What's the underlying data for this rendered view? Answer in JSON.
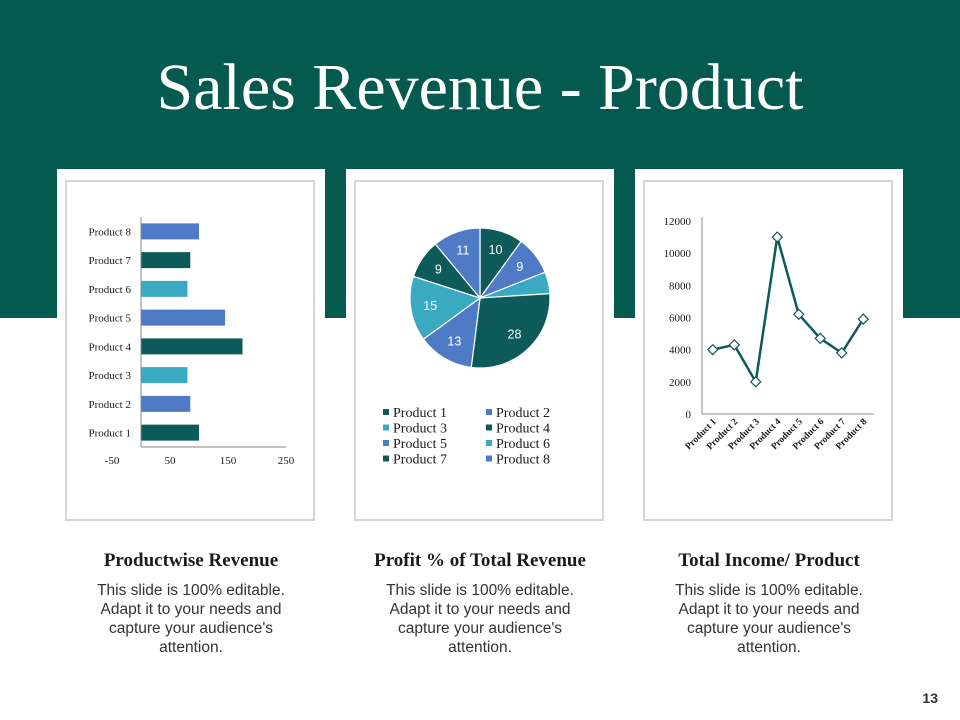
{
  "title": "Sales Revenue - Product",
  "page_number": "13",
  "colors": {
    "teal": "#045a4e",
    "blue": "#4f7bc6",
    "cyan": "#3aaac2",
    "navy": "#0d5a5b"
  },
  "captions": [
    {
      "title": "Productwise Revenue",
      "lines": [
        "This slide is 100% editable.",
        "Adapt it to your needs and",
        "capture your audience's",
        "attention."
      ]
    },
    {
      "title": "Profit % of Total Revenue",
      "lines": [
        "This slide is 100% editable.",
        "Adapt it to your needs and",
        "capture your audience's",
        "attention."
      ]
    },
    {
      "title": "Total Income/ Product",
      "lines": [
        "This slide is 100% editable.",
        "Adapt it to your needs and",
        "capture your audience's",
        "attention."
      ]
    }
  ],
  "chart_data": [
    {
      "type": "bar",
      "orientation": "horizontal",
      "title": "Productwise Revenue",
      "categories": [
        "Product 1",
        "Product 2",
        "Product 3",
        "Product 4",
        "Product 5",
        "Product 6",
        "Product 7",
        "Product 8"
      ],
      "values": [
        100,
        85,
        80,
        175,
        145,
        80,
        85,
        100
      ],
      "bar_colors": [
        "#0d5a5b",
        "#4f7bc6",
        "#3aaac2",
        "#0d5a5b",
        "#4f7bc6",
        "#3aaac2",
        "#0d5a5b",
        "#4f7bc6"
      ],
      "xlim": [
        -50,
        250
      ],
      "xticks": [
        -50,
        50,
        150,
        250
      ],
      "xlabel": "",
      "ylabel": ""
    },
    {
      "type": "pie",
      "title": "Profit % of Total Revenue",
      "slices": [
        {
          "label": "Product 1",
          "value": 10,
          "color": "#0d5a5b",
          "show_label": true
        },
        {
          "label": "Product 2",
          "value": 9,
          "color": "#4f7bc6",
          "show_label": true
        },
        {
          "label": "Product 3",
          "value": 5,
          "color": "#3aaac2",
          "show_label": false
        },
        {
          "label": "Product 4",
          "value": 28,
          "color": "#0d5a5b",
          "show_label": true
        },
        {
          "label": "Product 5",
          "value": 13,
          "color": "#4f7bc6",
          "show_label": true
        },
        {
          "label": "Product 6",
          "value": 15,
          "color": "#3aaac2",
          "show_label": true
        },
        {
          "label": "Product 7",
          "value": 9,
          "color": "#0d5a5b",
          "show_label": true
        },
        {
          "label": "Product 8",
          "value": 11,
          "color": "#4f7bc6",
          "show_label": true
        }
      ],
      "legend": [
        "Product 1",
        "Product 2",
        "Product 3",
        "Product 4",
        "Product 5",
        "Product 6",
        "Product 7",
        "Product 8"
      ],
      "legend_position": "bottom"
    },
    {
      "type": "line",
      "title": "Total Income/ Product",
      "categories": [
        "Product 1",
        "Product 2",
        "Product 3",
        "Product 4",
        "Product 5",
        "Product 6",
        "Product 7",
        "Product 8"
      ],
      "values": [
        4000,
        4300,
        2000,
        11000,
        6200,
        4700,
        3800,
        5900
      ],
      "ylim": [
        0,
        12000
      ],
      "yticks": [
        0,
        2000,
        4000,
        6000,
        8000,
        10000,
        12000
      ],
      "line_color": "#0d5a5b",
      "xlabel": "",
      "ylabel": ""
    }
  ]
}
